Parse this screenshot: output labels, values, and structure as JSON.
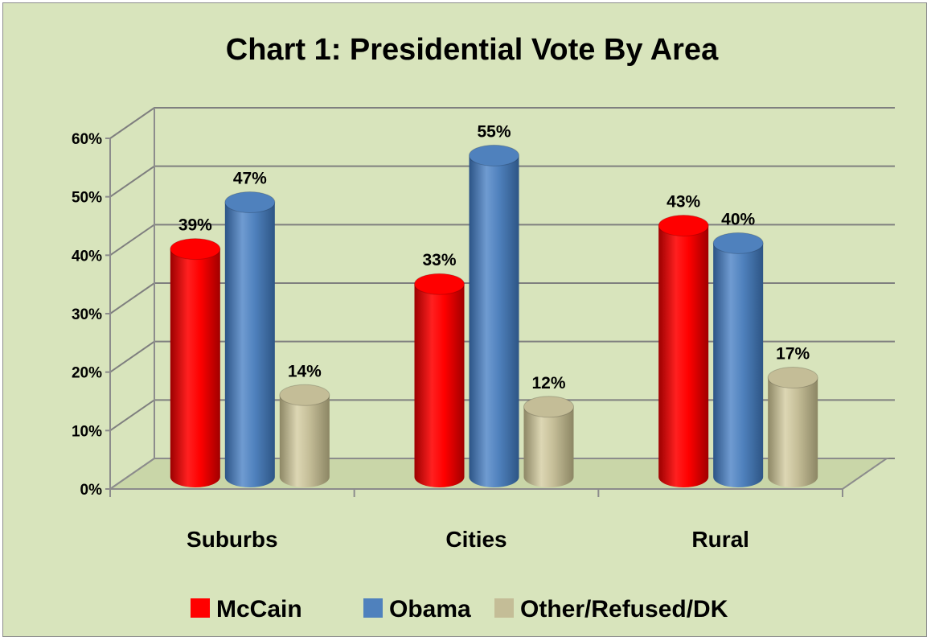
{
  "chart_data": {
    "type": "bar",
    "style": "3d-cylinder",
    "title": "Chart 1: Presidential Vote By Area",
    "categories": [
      "Suburbs",
      "Cities",
      "Rural"
    ],
    "series": [
      {
        "name": "McCain",
        "values": [
          39,
          33,
          43
        ],
        "color": "#ff0000"
      },
      {
        "name": "Obama",
        "values": [
          47,
          55,
          40
        ],
        "color": "#4f81bd"
      },
      {
        "name": "Other/Refused/DK",
        "values": [
          14,
          12,
          17
        ],
        "color": "#c4bd97"
      }
    ],
    "data_labels": [
      [
        "39%",
        "33%",
        "43%"
      ],
      [
        "47%",
        "55%",
        "40%"
      ],
      [
        "14%",
        "12%",
        "17%"
      ]
    ],
    "y_ticks": [
      "0%",
      "10%",
      "20%",
      "30%",
      "40%",
      "50%",
      "60%"
    ],
    "ylim": [
      0,
      60
    ],
    "xlabel": "",
    "ylabel": "",
    "grid": true,
    "legend_position": "bottom",
    "background_color": "#d8e4bc"
  }
}
